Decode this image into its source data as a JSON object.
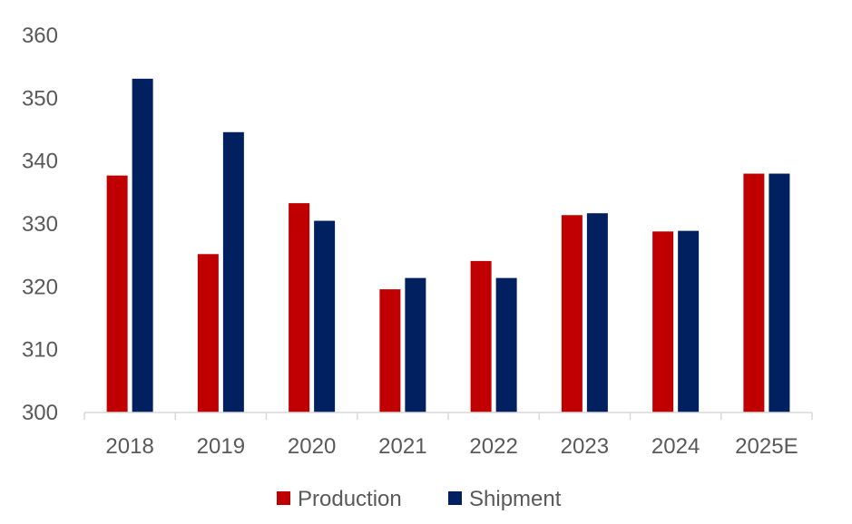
{
  "chart_data": {
    "type": "bar",
    "categories": [
      "2018",
      "2019",
      "2020",
      "2021",
      "2022",
      "2023",
      "2024",
      "2025E"
    ],
    "series": [
      {
        "name": "Production",
        "color": "#C00000",
        "values": [
          337.7,
          325.2,
          333.3,
          319.6,
          324.1,
          331.4,
          328.8,
          338.0
        ]
      },
      {
        "name": "Shipment",
        "color": "#002060",
        "values": [
          353.1,
          344.6,
          330.5,
          321.4,
          321.4,
          331.7,
          328.9,
          338.0
        ]
      }
    ],
    "ylim": [
      300,
      360
    ],
    "yticks": [
      "300",
      "310",
      "320",
      "330",
      "340",
      "350",
      "360"
    ],
    "grid": false,
    "legend_position": "bottom"
  }
}
